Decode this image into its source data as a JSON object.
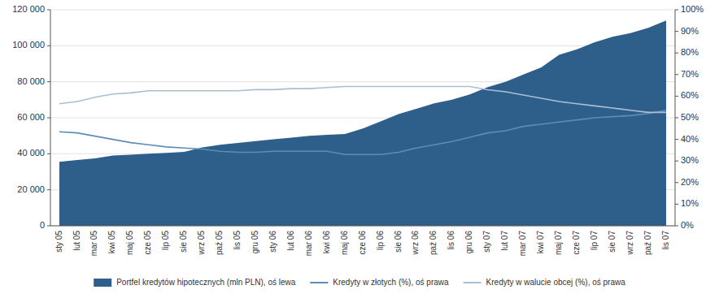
{
  "chart_data": {
    "type": "line",
    "categories": [
      "sty 05",
      "lut 05",
      "mar 05",
      "kwi 05",
      "maj 05",
      "cze 05",
      "lip 05",
      "sie 05",
      "wrz 05",
      "paź 05",
      "lis 05",
      "gru 05",
      "sty 06",
      "lut 06",
      "mar 06",
      "kwi 06",
      "maj 06",
      "cze 06",
      "lip 06",
      "sie 06",
      "wrz 06",
      "paź 06",
      "lis 06",
      "gru 06",
      "sty 07",
      "lut 07",
      "mar 07",
      "kwi 07",
      "maj 07",
      "cze 07",
      "lip 07",
      "sie 07",
      "wrz 07",
      "paź 07",
      "lis 07"
    ],
    "series": [
      {
        "name": "Portfel kredytów hipotecznych (mln PLN), oś lewa",
        "type": "area",
        "color": "#2E5F8A",
        "values": [
          35500,
          36500,
          37500,
          39000,
          39500,
          40000,
          40500,
          41000,
          43500,
          45000,
          46000,
          47000,
          48000,
          49000,
          50000,
          50500,
          51000,
          54000,
          58000,
          62000,
          65000,
          68000,
          70000,
          73000,
          77000,
          80000,
          84000,
          88000,
          95000,
          98000,
          102000,
          105000,
          107000,
          110000,
          114000
        ]
      },
      {
        "name": "Kredyty w złotych (%), oś prawa",
        "type": "line",
        "axis": "y2",
        "color": "#5B8DB8",
        "values": [
          0.435,
          0.43,
          0.415,
          0.4,
          0.385,
          0.375,
          0.365,
          0.36,
          0.355,
          0.345,
          0.34,
          0.34,
          0.345,
          0.345,
          0.345,
          0.345,
          0.33,
          0.33,
          0.33,
          0.34,
          0.36,
          0.375,
          0.39,
          0.41,
          0.43,
          0.44,
          0.46,
          0.47,
          0.48,
          0.49,
          0.5,
          0.505,
          0.51,
          0.52,
          0.535
        ]
      },
      {
        "name": "Kredyty w walucie obcej (%), oś prawa",
        "type": "line",
        "axis": "y2",
        "color": "#AABFD4",
        "values": [
          0.565,
          0.575,
          0.595,
          0.61,
          0.615,
          0.625,
          0.625,
          0.625,
          0.625,
          0.625,
          0.625,
          0.63,
          0.63,
          0.635,
          0.635,
          0.64,
          0.645,
          0.645,
          0.645,
          0.645,
          0.645,
          0.645,
          0.645,
          0.645,
          0.63,
          0.62,
          0.605,
          0.59,
          0.575,
          0.565,
          0.555,
          0.545,
          0.535,
          0.525,
          0.525
        ]
      }
    ],
    "ylim": [
      0,
      120000
    ],
    "yticks": [
      0,
      {
        "value": 20000,
        "label": "20 000"
      },
      {
        "value": 40000,
        "label": "40 000"
      },
      {
        "value": 60000,
        "label": "60 000"
      },
      {
        "value": 80000,
        "label": "80 000"
      },
      {
        "value": 100000,
        "label": "100 000"
      },
      {
        "value": 120000,
        "label": "120 000"
      }
    ],
    "y2lim": [
      0.0,
      1.0
    ],
    "y2ticks": [
      {
        "value": 0.0,
        "label": "0%"
      },
      {
        "value": 0.1,
        "label": "10%"
      },
      {
        "value": 0.2,
        "label": "20%"
      },
      {
        "value": 0.3,
        "label": "30%"
      },
      {
        "value": 0.4,
        "label": "40%"
      },
      {
        "value": 0.5,
        "label": "50%"
      },
      {
        "value": 0.6,
        "label": "60%"
      },
      {
        "value": 0.7,
        "label": "70%"
      },
      {
        "value": 0.8,
        "label": "80%"
      },
      {
        "value": 0.9,
        "label": "90%"
      },
      {
        "value": 1.0,
        "label": "100%"
      }
    ],
    "grid": true,
    "legend": "bottom"
  }
}
